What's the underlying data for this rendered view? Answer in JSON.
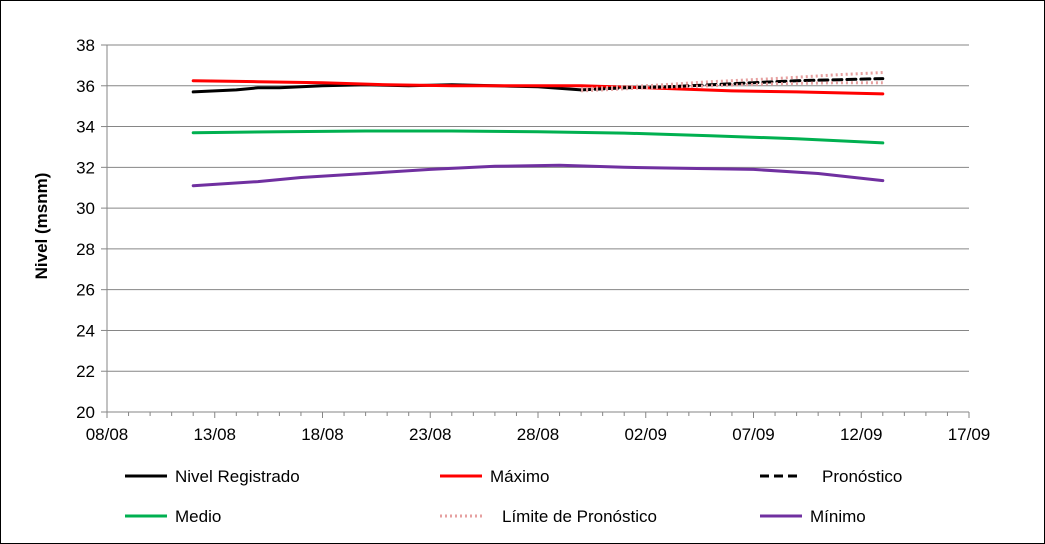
{
  "chart_data": {
    "type": "line",
    "title": "",
    "xlabel": "",
    "ylabel": "Nivel (msnm)",
    "ylim": [
      20,
      38
    ],
    "yticks": [
      "20",
      "22",
      "24",
      "26",
      "28",
      "30",
      "32",
      "34",
      "36",
      "38"
    ],
    "xlim": [
      "2025-08-08",
      "2025-09-17"
    ],
    "xticks": [
      {
        "date": "2025-08-08",
        "label": "08/08"
      },
      {
        "date": "2025-08-13",
        "label": "13/08"
      },
      {
        "date": "2025-08-18",
        "label": "18/08"
      },
      {
        "date": "2025-08-23",
        "label": "23/08"
      },
      {
        "date": "2025-08-28",
        "label": "28/08"
      },
      {
        "date": "2025-09-02",
        "label": "02/09"
      },
      {
        "date": "2025-09-07",
        "label": "07/09"
      },
      {
        "date": "2025-09-12",
        "label": "12/09"
      },
      {
        "date": "2025-09-17",
        "label": "17/09"
      }
    ],
    "grid": "horizontal",
    "legend_position": "bottom",
    "series": [
      {
        "name": "Nivel Registrado",
        "color": "#000000",
        "style": "solid",
        "points": [
          [
            "2025-08-12",
            35.7
          ],
          [
            "2025-08-14",
            35.8
          ],
          [
            "2025-08-15",
            35.9
          ],
          [
            "2025-08-16",
            35.9
          ],
          [
            "2025-08-18",
            36.0
          ],
          [
            "2025-08-20",
            36.05
          ],
          [
            "2025-08-22",
            36.0
          ],
          [
            "2025-08-24",
            36.05
          ],
          [
            "2025-08-26",
            36.0
          ],
          [
            "2025-08-28",
            35.95
          ],
          [
            "2025-08-30",
            35.8
          ]
        ]
      },
      {
        "name": "Máximo",
        "color": "#ff0000",
        "style": "solid",
        "points": [
          [
            "2025-08-12",
            36.25
          ],
          [
            "2025-08-15",
            36.2
          ],
          [
            "2025-08-18",
            36.15
          ],
          [
            "2025-08-21",
            36.05
          ],
          [
            "2025-08-24",
            36.0
          ],
          [
            "2025-08-27",
            36.0
          ],
          [
            "2025-08-30",
            36.0
          ],
          [
            "2025-09-02",
            35.9
          ],
          [
            "2025-09-06",
            35.75
          ],
          [
            "2025-09-09",
            35.7
          ],
          [
            "2025-09-13",
            35.6
          ]
        ]
      },
      {
        "name": "Pronóstico",
        "color": "#000000",
        "style": "dashed",
        "points": [
          [
            "2025-08-30",
            35.8
          ],
          [
            "2025-09-01",
            35.9
          ],
          [
            "2025-09-03",
            35.95
          ],
          [
            "2025-09-05",
            36.05
          ],
          [
            "2025-09-07",
            36.15
          ],
          [
            "2025-09-09",
            36.25
          ],
          [
            "2025-09-11",
            36.3
          ],
          [
            "2025-09-13",
            36.35
          ]
        ]
      },
      {
        "name": "Medio",
        "color": "#00b050",
        "style": "solid",
        "points": [
          [
            "2025-08-12",
            33.7
          ],
          [
            "2025-08-16",
            33.75
          ],
          [
            "2025-08-20",
            33.78
          ],
          [
            "2025-08-24",
            33.78
          ],
          [
            "2025-08-28",
            33.75
          ],
          [
            "2025-09-01",
            33.68
          ],
          [
            "2025-09-05",
            33.55
          ],
          [
            "2025-09-09",
            33.4
          ],
          [
            "2025-09-13",
            33.2
          ]
        ]
      },
      {
        "name": "Límite de Pronóstico",
        "color": "#e6a0a0",
        "style": "dotted",
        "points": [
          [
            "2025-08-30",
            35.85
          ],
          [
            "2025-09-02",
            36.0
          ],
          [
            "2025-09-05",
            36.2
          ],
          [
            "2025-09-08",
            36.35
          ],
          [
            "2025-09-11",
            36.55
          ],
          [
            "2025-09-13",
            36.65
          ]
        ]
      },
      {
        "name": "Límite de Pronóstico",
        "color": "#e6a0a0",
        "style": "dotted",
        "in_legend": false,
        "points": [
          [
            "2025-08-30",
            35.75
          ],
          [
            "2025-09-02",
            35.9
          ],
          [
            "2025-09-05",
            36.0
          ],
          [
            "2025-09-08",
            36.1
          ],
          [
            "2025-09-11",
            36.15
          ],
          [
            "2025-09-13",
            36.15
          ]
        ]
      },
      {
        "name": "Mínimo",
        "color": "#7030a0",
        "style": "solid",
        "points": [
          [
            "2025-08-12",
            31.1
          ],
          [
            "2025-08-15",
            31.3
          ],
          [
            "2025-08-17",
            31.5
          ],
          [
            "2025-08-20",
            31.7
          ],
          [
            "2025-08-23",
            31.9
          ],
          [
            "2025-08-26",
            32.05
          ],
          [
            "2025-08-29",
            32.1
          ],
          [
            "2025-09-01",
            32.0
          ],
          [
            "2025-09-04",
            31.95
          ],
          [
            "2025-09-07",
            31.9
          ],
          [
            "2025-09-10",
            31.7
          ],
          [
            "2025-09-13",
            31.35
          ]
        ]
      }
    ]
  }
}
